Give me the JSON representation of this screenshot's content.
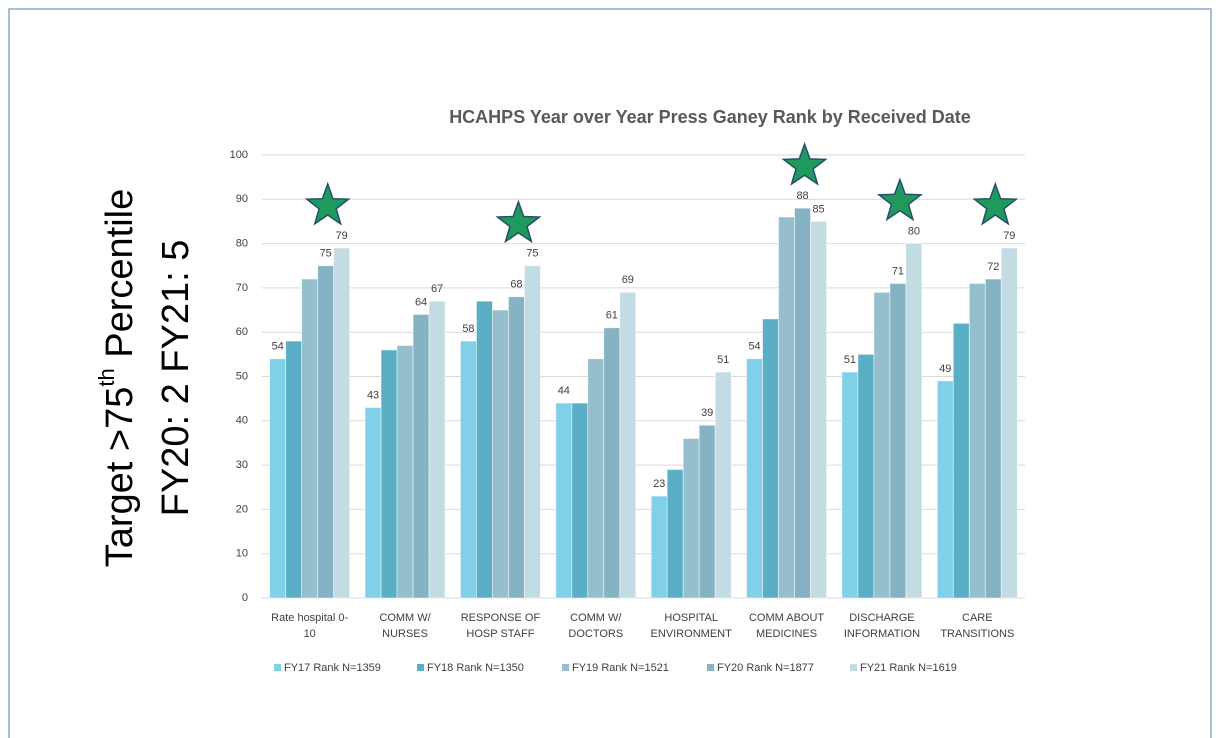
{
  "side_text": {
    "line1_main": "Target >75",
    "line1_sup": "th",
    "line1_end": " Percentile",
    "line2": "FY20: 2  FY21: 5"
  },
  "chart_data": {
    "type": "bar",
    "title": "HCAHPS Year over Year Press Ganey Rank by Received Date",
    "categories": [
      [
        "Rate hospital 0-",
        "10"
      ],
      [
        "COMM W/",
        "NURSES"
      ],
      [
        "RESPONSE OF",
        "HOSP STAFF"
      ],
      [
        "COMM W/",
        "DOCTORS"
      ],
      [
        "HOSPITAL",
        "ENVIRONMENT"
      ],
      [
        "COMM ABOUT",
        "MEDICINES"
      ],
      [
        "DISCHARGE",
        "INFORMATION"
      ],
      [
        "CARE",
        "TRANSITIONS"
      ]
    ],
    "highlighted": [
      true,
      false,
      true,
      false,
      false,
      true,
      true,
      true
    ],
    "series": [
      {
        "name": "FY17 Rank N=1359",
        "color": "#7fd0e8",
        "show_labels": true,
        "values": [
          54,
          43,
          58,
          44,
          23,
          54,
          51,
          49
        ]
      },
      {
        "name": "FY18 Rank N=1350",
        "color": "#5aaec6",
        "show_labels": false,
        "values": [
          58,
          56,
          67,
          44,
          29,
          63,
          55,
          62
        ]
      },
      {
        "name": "FY19 Rank N=1521",
        "color": "#95bfcc",
        "show_labels": false,
        "values": [
          72,
          57,
          65,
          54,
          36,
          86,
          69,
          71
        ]
      },
      {
        "name": "FY20 Rank N=1877",
        "color": "#86b3c4",
        "show_labels": true,
        "values": [
          75,
          64,
          68,
          61,
          39,
          88,
          71,
          72
        ]
      },
      {
        "name": "FY21 Rank N=1619",
        "color": "#c3dbe3",
        "show_labels": true,
        "values": [
          79,
          67,
          75,
          69,
          51,
          85,
          80,
          79
        ]
      }
    ],
    "ylim": [
      0,
      100
    ],
    "yticks": [
      0,
      10,
      20,
      30,
      40,
      50,
      60,
      70,
      80,
      90,
      100
    ],
    "grid": true,
    "legend": "bottom"
  }
}
